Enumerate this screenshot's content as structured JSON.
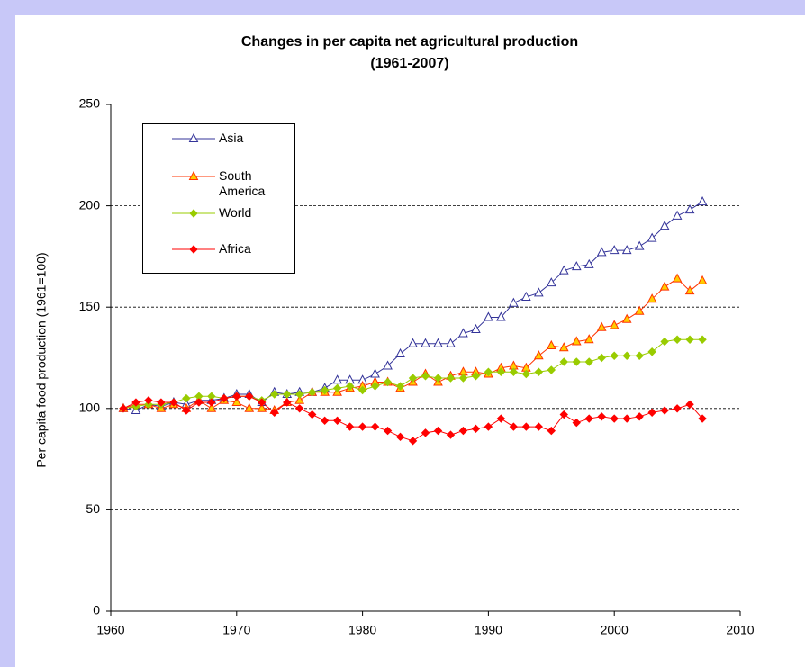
{
  "chart_data": {
    "type": "line",
    "title": "Changes in per capita net agricultural production",
    "subtitle": "(1961-2007)",
    "y_label": "Per capita food production (1961=100)",
    "x": [
      1961,
      1962,
      1963,
      1964,
      1965,
      1966,
      1967,
      1968,
      1969,
      1970,
      1971,
      1972,
      1973,
      1974,
      1975,
      1976,
      1977,
      1978,
      1979,
      1980,
      1981,
      1982,
      1983,
      1984,
      1985,
      1986,
      1987,
      1988,
      1989,
      1990,
      1991,
      1992,
      1993,
      1994,
      1995,
      1996,
      1997,
      1998,
      1999,
      2000,
      2001,
      2002,
      2003,
      2004,
      2005,
      2006,
      2007
    ],
    "series": [
      {
        "name": "Asia",
        "color": "#333399",
        "marker": "triangle",
        "marker_fill": "#ffffff",
        "values": [
          100,
          99,
          102,
          101,
          103,
          102,
          104,
          104,
          105,
          107,
          107,
          103,
          108,
          107,
          108,
          108,
          110,
          114,
          114,
          114,
          117,
          121,
          127,
          132,
          132,
          132,
          132,
          137,
          139,
          145,
          145,
          152,
          155,
          157,
          162,
          168,
          170,
          171,
          177,
          178,
          178,
          180,
          184,
          190,
          195,
          198,
          202
        ]
      },
      {
        "name": "South America",
        "color": "#ff3300",
        "marker": "triangle",
        "marker_fill": "#ffcc00",
        "values": [
          100,
          102,
          102,
          100,
          102,
          100,
          104,
          100,
          104,
          103,
          100,
          100,
          99,
          103,
          104,
          108,
          108,
          108,
          110,
          111,
          113,
          113,
          110,
          113,
          117,
          113,
          116,
          118,
          118,
          117,
          120,
          121,
          120,
          126,
          131,
          130,
          133,
          134,
          140,
          141,
          144,
          148,
          154,
          160,
          164,
          158,
          163
        ]
      },
      {
        "name": "World",
        "color": "#99cc00",
        "marker": "diamond",
        "marker_fill": "#99cc00",
        "values": [
          100,
          101,
          102,
          102,
          103,
          105,
          106,
          106,
          105,
          106,
          106,
          104,
          107,
          107,
          107,
          108,
          109,
          110,
          111,
          109,
          111,
          113,
          111,
          115,
          116,
          115,
          115,
          115,
          116,
          118,
          118,
          118,
          117,
          118,
          119,
          123,
          123,
          123,
          125,
          126,
          126,
          126,
          128,
          133,
          134,
          134,
          134
        ]
      },
      {
        "name": "Africa",
        "color": "#ff0000",
        "marker": "diamond",
        "marker_fill": "#ff0000",
        "values": [
          100,
          103,
          104,
          103,
          103,
          99,
          103,
          103,
          105,
          106,
          106,
          103,
          98,
          103,
          100,
          97,
          94,
          94,
          91,
          91,
          91,
          89,
          86,
          84,
          88,
          89,
          87,
          89,
          90,
          91,
          95,
          91,
          91,
          91,
          89,
          97,
          93,
          95,
          96,
          95,
          95,
          96,
          98,
          99,
          100,
          102,
          95
        ]
      }
    ],
    "xlim": [
      1960,
      2010
    ],
    "xticks": [
      1960,
      1970,
      1980,
      1990,
      2000,
      2010
    ],
    "ylim": [
      0,
      250
    ],
    "yticks": [
      0,
      50,
      100,
      150,
      200,
      250
    ],
    "grid": true
  }
}
